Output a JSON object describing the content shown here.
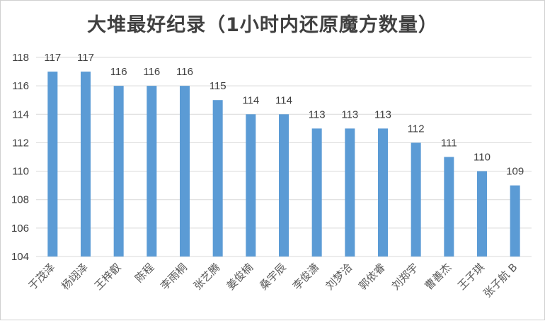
{
  "chart_data": {
    "type": "bar",
    "title": "大堆最好纪录（1小时内还原魔方数量）",
    "categories": [
      "于茂泽",
      "杨翊泽",
      "王梓叡",
      "陈程",
      "李雨桐",
      "张艺腾",
      "姜俊楠",
      "桑宇辰",
      "李俊潇",
      "刘梦洽",
      "郭依睿",
      "刘郑宇",
      "曹善杰",
      "王子琪",
      "张子航 B"
    ],
    "values": [
      117,
      117,
      116,
      116,
      116,
      115,
      114,
      114,
      113,
      113,
      113,
      112,
      111,
      110,
      109
    ],
    "ylim": [
      104,
      118
    ],
    "yticks": [
      104,
      106,
      108,
      110,
      112,
      114,
      116,
      118
    ],
    "grid": true,
    "legend": "none",
    "bar_color": "#5b9bd5",
    "xlabel": "",
    "ylabel": ""
  }
}
